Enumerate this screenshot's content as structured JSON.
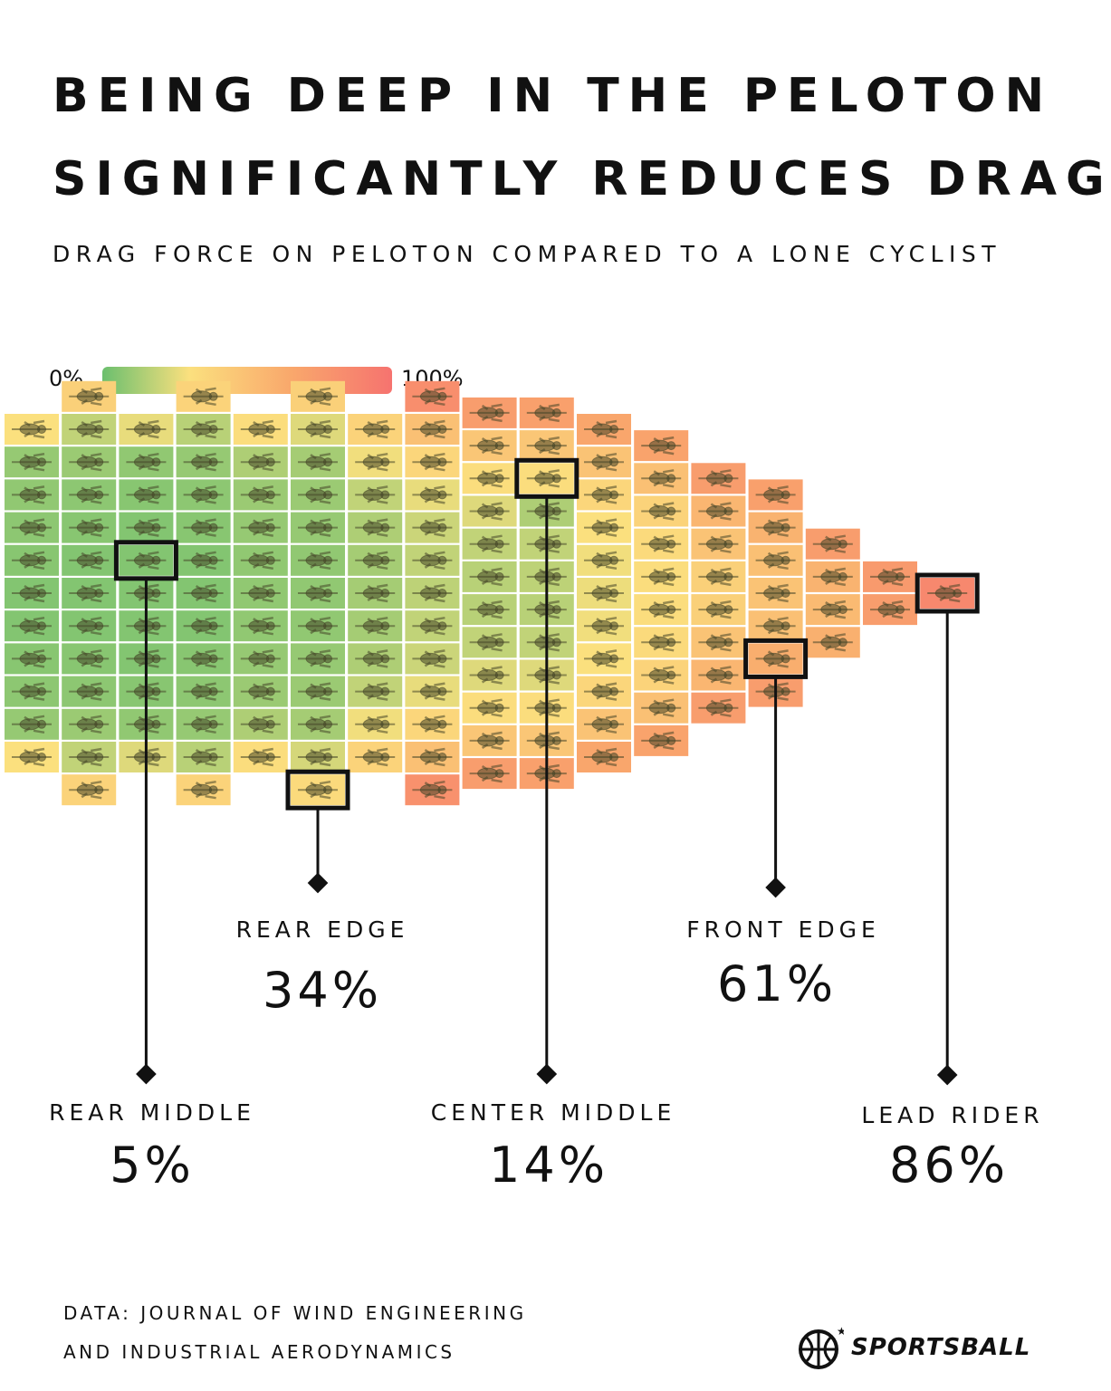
{
  "title_line1": "Being deep in the peloton",
  "title_line2": "significantly reduces drag",
  "subtitle": "Drag force on peloton compared to a lone cyclist",
  "scale": {
    "min_label": "0%",
    "max_label": "100%",
    "colors": [
      "#6bbf6e",
      "#fbe07e",
      "#f9a86c",
      "#f6736f"
    ]
  },
  "chart_data": {
    "type": "heatmap",
    "title": "Being deep in the peloton significantly reduces drag",
    "subtitle": "Drag force on peloton compared to a lone cyclist",
    "value_unit": "% of lone-cyclist drag",
    "range": [
      0,
      100
    ],
    "columns_rear_to_front": [
      {
        "values": [
          30,
          9,
          8,
          7,
          6,
          5,
          5,
          6,
          7,
          9,
          30
        ]
      },
      {
        "values": [
          40,
          18,
          10,
          7,
          6,
          5,
          5,
          5,
          6,
          7,
          10,
          18,
          38
        ]
      },
      {
        "values": [
          26,
          8,
          6,
          5,
          5,
          5,
          5,
          5,
          6,
          8,
          24
        ]
      },
      {
        "values": [
          38,
          16,
          9,
          7,
          6,
          5,
          5,
          5,
          6,
          7,
          9,
          16,
          38
        ]
      },
      {
        "values": [
          32,
          14,
          10,
          9,
          8,
          8,
          8,
          9,
          10,
          14,
          32
        ]
      },
      {
        "values": [
          40,
          24,
          12,
          10,
          9,
          8,
          8,
          8,
          9,
          10,
          12,
          22,
          34
        ]
      },
      {
        "values": [
          38,
          28,
          18,
          14,
          12,
          12,
          12,
          14,
          18,
          28,
          38
        ]
      },
      {
        "values": [
          82,
          50,
          36,
          26,
          20,
          18,
          17,
          18,
          20,
          26,
          36,
          50,
          80
        ]
      },
      {
        "values": [
          72,
          46,
          32,
          24,
          18,
          16,
          16,
          18,
          24,
          32,
          46,
          72
        ]
      },
      {
        "values": [
          70,
          46,
          32,
          14,
          18,
          17,
          16,
          18,
          24,
          32,
          46,
          70
        ]
      },
      {
        "values": [
          66,
          48,
          36,
          30,
          28,
          27,
          28,
          30,
          36,
          48,
          66
        ]
      },
      {
        "values": [
          68,
          50,
          38,
          34,
          32,
          32,
          34,
          38,
          50,
          68
        ]
      },
      {
        "values": [
          72,
          56,
          48,
          40,
          40,
          48,
          56,
          72
        ]
      },
      {
        "values": [
          70,
          58,
          50,
          48,
          50,
          61,
          72
        ]
      },
      {
        "values": [
          72,
          58,
          54,
          60
        ]
      },
      {
        "values": [
          74,
          72
        ]
      },
      {
        "values": [
          86
        ]
      }
    ],
    "callouts": [
      {
        "label": "Rear middle",
        "value": "5%"
      },
      {
        "label": "Rear edge",
        "value": "34%"
      },
      {
        "label": "Center middle",
        "value": "14%"
      },
      {
        "label": "Front edge",
        "value": "61%"
      },
      {
        "label": "Lead rider",
        "value": "86%"
      }
    ]
  },
  "source_line1": "Data: Journal of wind engineering",
  "source_line2": "and industrial aerodynamics",
  "brand": {
    "name": "SPORTSBALL",
    "icon": "basketball-icon"
  }
}
